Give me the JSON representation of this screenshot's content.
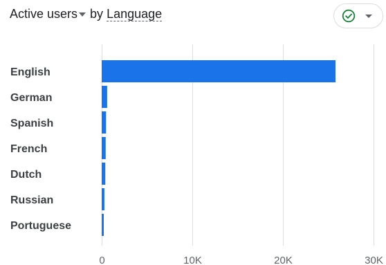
{
  "header": {
    "metric_label": "Active users",
    "by_text": "by",
    "dimension_label": "Language"
  },
  "compare_chip": {
    "check_icon": "check-circle-icon",
    "caret_icon": "caret-down-icon",
    "check_color": "#188038"
  },
  "colors": {
    "bar": "#1a73e8",
    "grid": "#dadce0",
    "axis": "#5f6368"
  },
  "chart_data": {
    "type": "bar",
    "orientation": "horizontal",
    "categories": [
      "English",
      "German",
      "Spanish",
      "French",
      "Dutch",
      "Russian",
      "Portuguese"
    ],
    "series": [
      {
        "values": [
          25800,
          600,
          480,
          440,
          400,
          300,
          230
        ]
      }
    ],
    "xlim": [
      0,
      30000
    ],
    "xticks": [
      0,
      10000,
      20000,
      30000
    ],
    "xtick_labels": [
      "0",
      "10K",
      "20K",
      "30K"
    ],
    "grid": true,
    "grid_axis": "x",
    "legend": "none"
  }
}
